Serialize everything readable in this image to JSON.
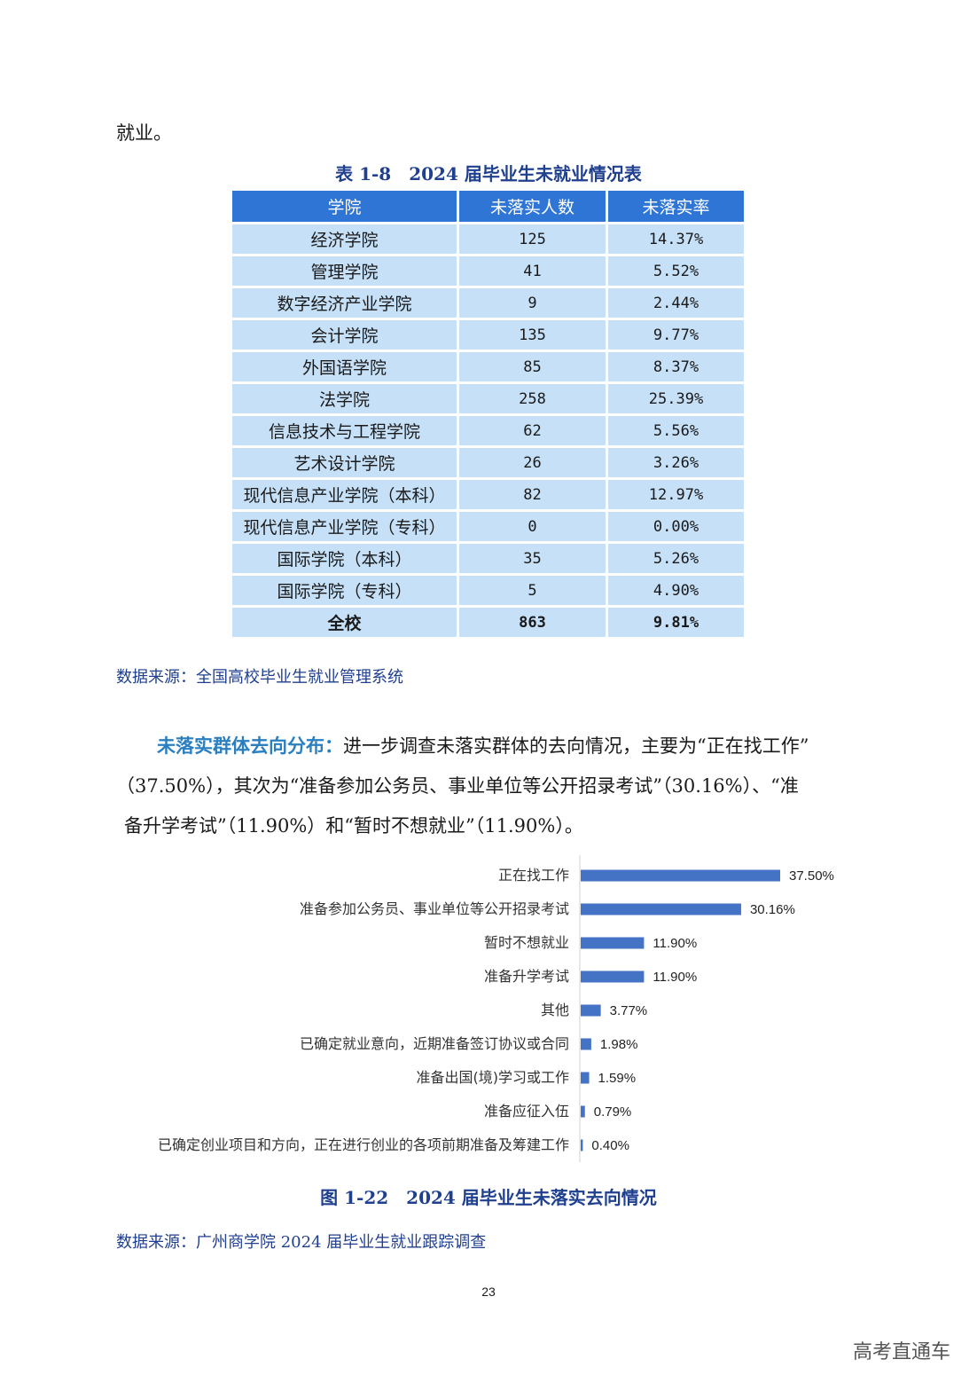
{
  "lead_text": "就业。",
  "table": {
    "title": "表 1-8　2024 届毕业生未就业情况表",
    "headers": [
      "学院",
      "未落实人数",
      "未落实率"
    ],
    "rows": [
      [
        "经济学院",
        "125",
        "14.37%"
      ],
      [
        "管理学院",
        "41",
        "5.52%"
      ],
      [
        "数字经济产业学院",
        "9",
        "2.44%"
      ],
      [
        "会计学院",
        "135",
        "9.77%"
      ],
      [
        "外国语学院",
        "85",
        "8.37%"
      ],
      [
        "法学院",
        "258",
        "25.39%"
      ],
      [
        "信息技术与工程学院",
        "62",
        "5.56%"
      ],
      [
        "艺术设计学院",
        "26",
        "3.26%"
      ],
      [
        "现代信息产业学院（本科）",
        "82",
        "12.97%"
      ],
      [
        "现代信息产业学院（专科）",
        "0",
        "0.00%"
      ],
      [
        "国际学院（本科）",
        "35",
        "5.26%"
      ],
      [
        "国际学院（专科）",
        "5",
        "4.90%"
      ],
      [
        "全校",
        "863",
        "9.81%"
      ]
    ]
  },
  "source1": "数据来源：全国高校毕业生就业管理系统",
  "paragraph": {
    "title": "未落实群体去向分布：",
    "line1": "进一步调查未落实群体的去向情况，主要为“正在找工作”",
    "line2": "（37.50%），其次为“准备参加公务员、事业单位等公开招录考试”（30.16%）、“准",
    "line3": "备升学考试”（11.90%）和“暂时不想就业”（11.90%）。"
  },
  "chart_data": {
    "type": "bar",
    "orientation": "horizontal",
    "categories": [
      "正在找工作",
      "准备参加公务员、事业单位等公开招录考试",
      "暂时不想就业",
      "准备升学考试",
      "其他",
      "已确定就业意向，近期准备签订协议或合同",
      "准备出国(境)学习或工作",
      "准备应征入伍",
      "已确定创业项目和方向，正在进行创业的各项前期准备及筹建工作"
    ],
    "values": [
      37.5,
      30.16,
      11.9,
      11.9,
      3.77,
      1.98,
      1.59,
      0.79,
      0.4
    ],
    "labels": [
      "37.50%",
      "30.16%",
      "11.90%",
      "11.90%",
      "3.77%",
      "1.98%",
      "1.59%",
      "0.79%",
      "0.40%"
    ],
    "bar_color": "#4472c4",
    "xlim": [
      0,
      40
    ]
  },
  "figure_title": "图 1-22　2024 届毕业生未落实去向情况",
  "source2": "数据来源：广州商学院 2024 届毕业生就业跟踪调查",
  "page_number": "23",
  "watermark": "高考直通车"
}
